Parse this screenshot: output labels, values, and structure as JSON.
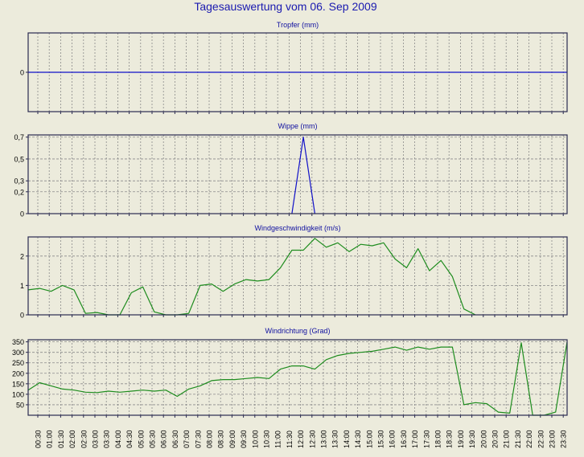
{
  "title": "Tagesauswertung vom 06. Sep 2009",
  "colors": {
    "background": "#ecebdc",
    "title": "#1a1ab0",
    "panel_title": "#1010a0",
    "frame": "#2a2a50",
    "grid": "#8a8a8a",
    "line_blue": "#1010c8",
    "line_green": "#1e8c1e"
  },
  "x_tick_labels": [
    "00:30",
    "01:00",
    "01:30",
    "02:00",
    "02:30",
    "03:00",
    "03:30",
    "04:00",
    "04:30",
    "05:00",
    "05:30",
    "06:00",
    "06:30",
    "07:00",
    "07:30",
    "08:00",
    "08:30",
    "09:00",
    "09:30",
    "10:00",
    "10:30",
    "11:00",
    "11:30",
    "12:00",
    "12:30",
    "13:00",
    "13:30",
    "14:00",
    "14:30",
    "15:00",
    "15:30",
    "16:00",
    "16:30",
    "17:00",
    "17:30",
    "18:00",
    "18:30",
    "19:00",
    "19:30",
    "20:00",
    "20:30",
    "21:00",
    "21:30",
    "22:00",
    "22:30",
    "23:00",
    "23:30"
  ],
  "chart_data": [
    {
      "type": "line",
      "title": "Tropfer (mm)",
      "color": "line_blue",
      "yticks": [
        0
      ],
      "ytick_labels": [
        "0"
      ],
      "ylim": [
        -1,
        1
      ],
      "grid": true,
      "x": [
        0,
        23.5
      ],
      "values": [
        0,
        0
      ]
    },
    {
      "type": "line",
      "title": "Wippe (mm)",
      "color": "line_blue",
      "yticks": [
        0,
        0.2,
        0.3,
        0.5,
        0.7
      ],
      "ytick_labels": [
        "0",
        "0,2",
        "0,3",
        "0,5",
        "0,7"
      ],
      "ylim": [
        0,
        0.72
      ],
      "grid": true,
      "x": [
        11.5,
        12.0,
        12.5
      ],
      "values": [
        0,
        0.7,
        0
      ]
    },
    {
      "type": "line",
      "title": "Windgeschwindigkeit (m/s)",
      "color": "line_green",
      "yticks": [
        0,
        1,
        2
      ],
      "ytick_labels": [
        "0",
        "1",
        "2"
      ],
      "ylim": [
        0,
        2.65
      ],
      "grid": true,
      "x": [
        0,
        0.5,
        1.0,
        1.5,
        2.0,
        2.5,
        3.0,
        3.5,
        4.0,
        4.5,
        5.0,
        5.5,
        6.0,
        6.5,
        7.0,
        7.5,
        8.0,
        8.5,
        9.0,
        9.5,
        10.0,
        10.5,
        11.0,
        11.5,
        12.0,
        12.5,
        13.0,
        13.5,
        14.0,
        14.5,
        15.0,
        15.5,
        16.0,
        16.5,
        17.0,
        17.5,
        18.0,
        18.5,
        19.0
      ],
      "values": [
        0.85,
        0.9,
        0.8,
        1.0,
        0.85,
        0.05,
        0.08,
        0.0,
        0.0,
        0.75,
        0.95,
        0.1,
        0.0,
        0.0,
        0.05,
        1.0,
        1.05,
        0.8,
        1.05,
        1.2,
        1.15,
        1.2,
        1.6,
        2.2,
        2.2,
        2.6,
        2.3,
        2.45,
        2.15,
        2.4,
        2.35,
        2.45,
        1.9,
        1.6,
        2.25,
        1.5,
        1.85,
        1.3,
        0.2
      ],
      "extra_x": [
        19.5
      ],
      "extra_values": [
        0.0
      ]
    },
    {
      "type": "line",
      "title": "Windrichtung (Grad)",
      "color": "line_green",
      "yticks": [
        50,
        100,
        150,
        200,
        250,
        300,
        350
      ],
      "ytick_labels": [
        "50",
        "100",
        "150",
        "200",
        "250",
        "300",
        "350"
      ],
      "ylim": [
        0,
        360
      ],
      "grid": true,
      "x": [
        0,
        0.5,
        1.0,
        1.5,
        2.0,
        2.5,
        3.0,
        3.5,
        4.0,
        4.5,
        5.0,
        5.5,
        6.0,
        6.5,
        7.0,
        7.5,
        8.0,
        8.5,
        9.0,
        9.5,
        10.0,
        10.5,
        11.0,
        11.5,
        12.0,
        12.5,
        13.0,
        13.5,
        14.0,
        14.5,
        15.0,
        15.5,
        16.0,
        16.5,
        17.0,
        17.5,
        18.0,
        18.5,
        19.0,
        19.5,
        20.0,
        20.5,
        21.0,
        21.5,
        22.0,
        22.5,
        23.0,
        23.5
      ],
      "values": [
        120,
        155,
        140,
        125,
        120,
        110,
        108,
        115,
        110,
        115,
        120,
        115,
        120,
        90,
        125,
        140,
        165,
        170,
        170,
        175,
        180,
        175,
        220,
        235,
        235,
        220,
        265,
        285,
        295,
        300,
        305,
        315,
        325,
        310,
        325,
        315,
        325,
        325,
        50,
        60,
        55,
        15,
        10,
        345,
        0,
        0,
        15,
        350
      ]
    }
  ]
}
